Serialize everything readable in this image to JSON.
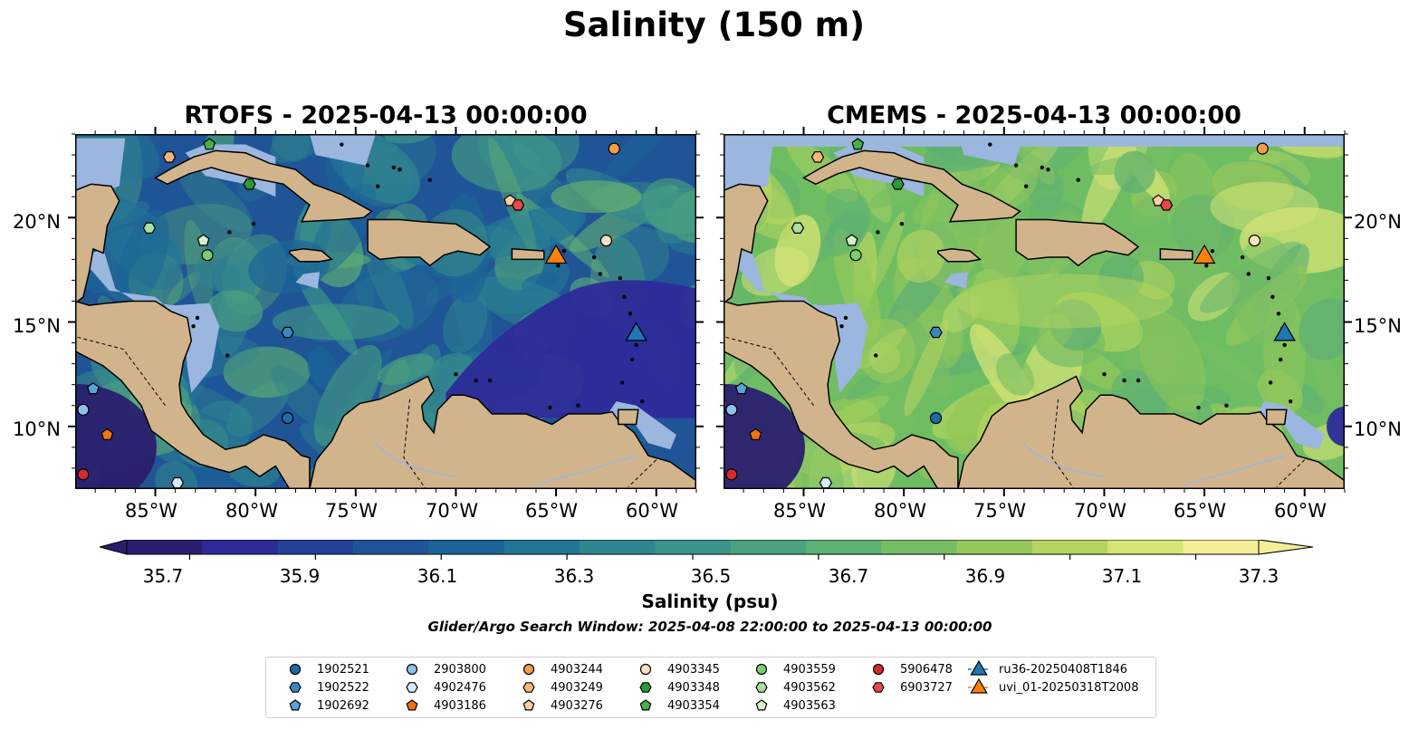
{
  "title": "Salinity (150 m)",
  "panels": [
    {
      "title": "RTOFS - 2025-04-13 00:00:00",
      "palette": "low"
    },
    {
      "title": "CMEMS - 2025-04-13 00:00:00",
      "palette": "high"
    }
  ],
  "axes": {
    "lon_ticks": [
      "85°W",
      "80°W",
      "75°W",
      "70°W",
      "65°W",
      "60°W"
    ],
    "lat_ticks": [
      "20°N",
      "15°N",
      "10°N"
    ],
    "lon_range": [
      -89,
      -58
    ],
    "lat_range": [
      7,
      24
    ]
  },
  "colorbar": {
    "label": "Salinity (psu)",
    "ticks": [
      "35.7",
      "35.9",
      "36.1",
      "36.3",
      "36.5",
      "36.7",
      "36.9",
      "37.1",
      "37.3"
    ],
    "range": [
      35.6,
      37.4
    ],
    "extend": "both",
    "colors": [
      "#2a1f6e",
      "#2d2a9a",
      "#25409b",
      "#1f539a",
      "#1b6598",
      "#237596",
      "#2f8590",
      "#3b938a",
      "#4aa27f",
      "#5eb073",
      "#77bd64",
      "#95c85a",
      "#b5d560",
      "#d6e476",
      "#f4ee97"
    ]
  },
  "search_window": "Glider/Argo Search Window: 2025-04-08 22:00:00 to 2025-04-13 00:00:00",
  "colors": {
    "land": "#d2b48c",
    "shelf": "#9bb6df",
    "ocean_low": "#1f5596",
    "ocean_high": "#6fbd62"
  },
  "legend": [
    {
      "id": "1902521",
      "marker": "circle",
      "color": "#1f6ba8"
    },
    {
      "id": "1902522",
      "marker": "hexagon",
      "color": "#3a87c2"
    },
    {
      "id": "1902692",
      "marker": "pentagon",
      "color": "#5aa3d6"
    },
    {
      "id": "2903800",
      "marker": "circle",
      "color": "#8ec1ea"
    },
    {
      "id": "4902476",
      "marker": "hexagon",
      "color": "#d7ecfa"
    },
    {
      "id": "4903186",
      "marker": "pentagon",
      "color": "#f0730f"
    },
    {
      "id": "4903244",
      "marker": "circle",
      "color": "#f39c49"
    },
    {
      "id": "4903249",
      "marker": "hexagon",
      "color": "#f6b57a"
    },
    {
      "id": "4903276",
      "marker": "pentagon",
      "color": "#fbd0a3"
    },
    {
      "id": "4903345",
      "marker": "circle",
      "color": "#fde1c2"
    },
    {
      "id": "4903348",
      "marker": "hexagon",
      "color": "#2c9a36"
    },
    {
      "id": "4903354",
      "marker": "pentagon",
      "color": "#48b04b"
    },
    {
      "id": "4903559",
      "marker": "circle",
      "color": "#7ccc72"
    },
    {
      "id": "4903562",
      "marker": "hexagon",
      "color": "#a9e0a0"
    },
    {
      "id": "4903563",
      "marker": "pentagon",
      "color": "#d4f1cb"
    },
    {
      "id": "5906478",
      "marker": "circle",
      "color": "#d42a2a"
    },
    {
      "id": "6903727",
      "marker": "hexagon",
      "color": "#e8474b"
    },
    {
      "id": "ru36-20250408T1846",
      "marker": "triangle",
      "color": "#1f77b4"
    },
    {
      "id": "uvi_01-20250318T2008",
      "marker": "triangle",
      "color": "#ff7f0e"
    }
  ],
  "floats": [
    {
      "id": "1902521",
      "lon": -78.4,
      "lat": 10.4
    },
    {
      "id": "1902522",
      "lon": -78.4,
      "lat": 14.5
    },
    {
      "id": "1902692",
      "lon": -88.1,
      "lat": 11.8
    },
    {
      "id": "2903800",
      "lon": -88.6,
      "lat": 10.8
    },
    {
      "id": "4902476",
      "lon": -83.9,
      "lat": 7.3
    },
    {
      "id": "4903186",
      "lon": -87.4,
      "lat": 9.6
    },
    {
      "id": "4903244",
      "lon": -62.1,
      "lat": 23.3
    },
    {
      "id": "4903249",
      "lon": -84.3,
      "lat": 22.9
    },
    {
      "id": "4903276",
      "lon": -67.3,
      "lat": 20.8
    },
    {
      "id": "4903345",
      "lon": -62.5,
      "lat": 18.9
    },
    {
      "id": "4903348",
      "lon": -80.3,
      "lat": 21.6
    },
    {
      "id": "4903354",
      "lon": -82.3,
      "lat": 23.5
    },
    {
      "id": "4903559",
      "lon": -82.4,
      "lat": 18.2
    },
    {
      "id": "4903562",
      "lon": -85.3,
      "lat": 19.5
    },
    {
      "id": "4903563",
      "lon": -82.6,
      "lat": 18.9
    },
    {
      "id": "5906478",
      "lon": -88.6,
      "lat": 7.7
    },
    {
      "id": "6903727",
      "lon": -66.9,
      "lat": 20.6
    },
    {
      "id": "ru36-20250408T1846",
      "lon": -61.0,
      "lat": 14.4
    },
    {
      "id": "uvi_01-20250318T2008",
      "lon": -65.0,
      "lat": 18.1
    }
  ]
}
